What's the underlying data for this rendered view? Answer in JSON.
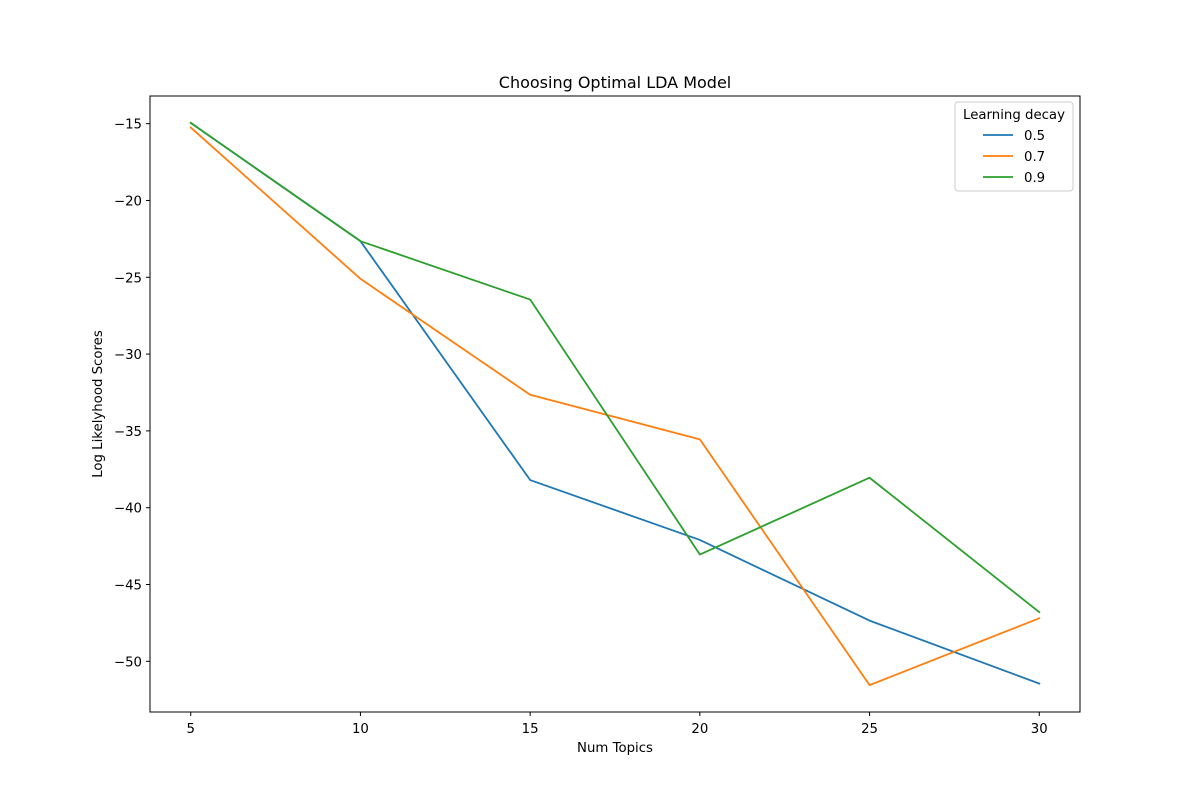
{
  "chart_data": {
    "type": "line",
    "title": "Choosing Optimal LDA Model",
    "xlabel": "Num Topics",
    "ylabel": "Log Likelyhood Scores",
    "x": [
      5,
      10,
      15,
      20,
      25,
      30
    ],
    "xlim": [
      3.8,
      31.2
    ],
    "ylim": [
      -53.3,
      -13.2
    ],
    "xticks": [
      5,
      10,
      15,
      20,
      25,
      30
    ],
    "yticks": [
      -15,
      -20,
      -25,
      -30,
      -35,
      -40,
      -45,
      -50
    ],
    "grid": false,
    "legend": {
      "title": "Learning decay",
      "location": "top-right"
    },
    "series": [
      {
        "name": "0.5",
        "color": "#1f77b4",
        "values": [
          -14.95,
          -22.65,
          -38.2,
          -42.1,
          -47.35,
          -51.45
        ]
      },
      {
        "name": "0.7",
        "color": "#ff7f0e",
        "values": [
          -15.25,
          -25.1,
          -32.65,
          -35.55,
          -51.55,
          -47.2
        ]
      },
      {
        "name": "0.9",
        "color": "#2ca02c",
        "values": [
          -14.95,
          -22.65,
          -26.45,
          -43.05,
          -38.05,
          -46.8
        ]
      }
    ]
  }
}
